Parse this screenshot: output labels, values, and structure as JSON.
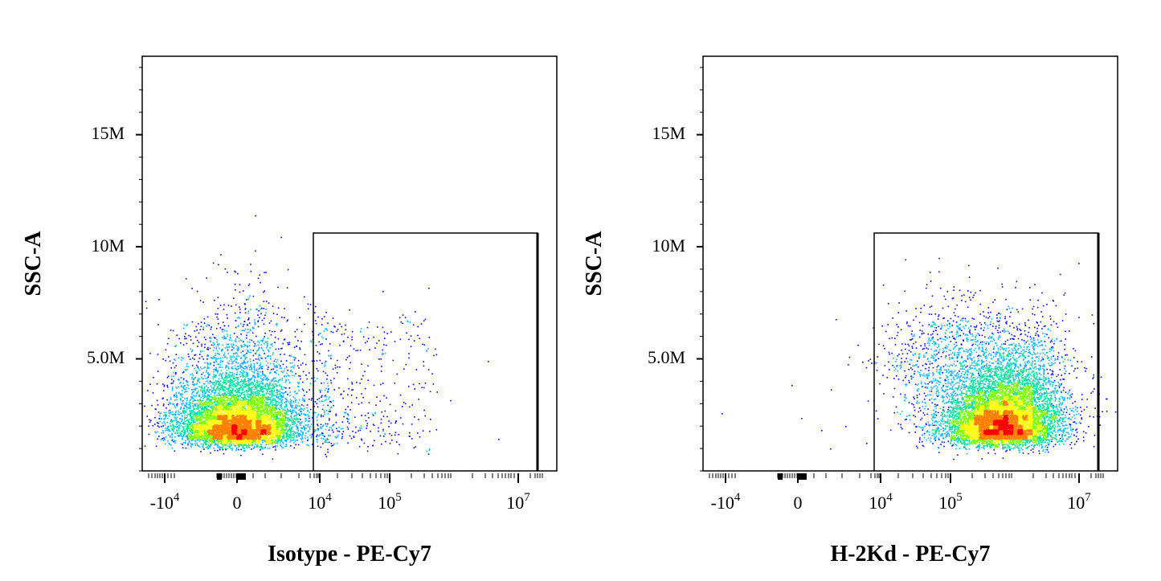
{
  "chart_data": [
    {
      "type": "scatter",
      "title": "",
      "xlabel": "Isotype - PE-Cy7",
      "ylabel": "SSC-A",
      "x_scale": "biexponential",
      "y_scale": "linear",
      "ylim": [
        0,
        18000000
      ],
      "y_ticks": [
        {
          "value": 5000000,
          "label": "5.0M"
        },
        {
          "value": 10000000,
          "label": "10M"
        },
        {
          "value": 15000000,
          "label": "15M"
        }
      ],
      "x_ticks": [
        {
          "base": "-10",
          "exp": "4"
        },
        {
          "base": "0",
          "exp": ""
        },
        {
          "base": "10",
          "exp": "4"
        },
        {
          "base": "10",
          "exp": "5"
        },
        {
          "base": "10",
          "exp": "7"
        }
      ],
      "gate": {
        "x_min": 10000,
        "x_max": 20000000,
        "y_min": 0,
        "y_max": 10600000
      },
      "series": [
        {
          "population": "main",
          "x_center": 0,
          "y_center": 1400000,
          "event_fraction": 0.96
        },
        {
          "population": "in_gate",
          "x_range": [
            10000,
            300000
          ],
          "y_range": [
            1000000,
            8000000
          ],
          "event_fraction": 0.04
        }
      ],
      "color_scale": [
        "#0000ff",
        "#00b4ff",
        "#00e0a0",
        "#80ff00",
        "#ffff00",
        "#ff8000",
        "#ff0000"
      ]
    },
    {
      "type": "scatter",
      "title": "",
      "xlabel": "H-2Kd - PE-Cy7",
      "ylabel": "SSC-A",
      "x_scale": "biexponential",
      "y_scale": "linear",
      "ylim": [
        0,
        18000000
      ],
      "y_ticks": [
        {
          "value": 5000000,
          "label": "5.0M"
        },
        {
          "value": 10000000,
          "label": "10M"
        },
        {
          "value": 15000000,
          "label": "15M"
        }
      ],
      "x_ticks": [
        {
          "base": "-10",
          "exp": "4"
        },
        {
          "base": "0",
          "exp": ""
        },
        {
          "base": "10",
          "exp": "4"
        },
        {
          "base": "10",
          "exp": "5"
        },
        {
          "base": "10",
          "exp": "7"
        }
      ],
      "gate": {
        "x_min": 10000,
        "x_max": 20000000,
        "y_min": 0,
        "y_max": 10600000
      },
      "series": [
        {
          "population": "main",
          "x_center": 500000,
          "y_center": 1400000,
          "event_fraction": 0.998
        },
        {
          "population": "outside_gate",
          "x_range": [
            -5000,
            10000
          ],
          "y_range": [
            1000000,
            7000000
          ],
          "event_fraction": 0.002
        }
      ],
      "color_scale": [
        "#0000ff",
        "#00b4ff",
        "#00e0a0",
        "#80ff00",
        "#ffff00",
        "#ff8000",
        "#ff0000"
      ]
    }
  ]
}
